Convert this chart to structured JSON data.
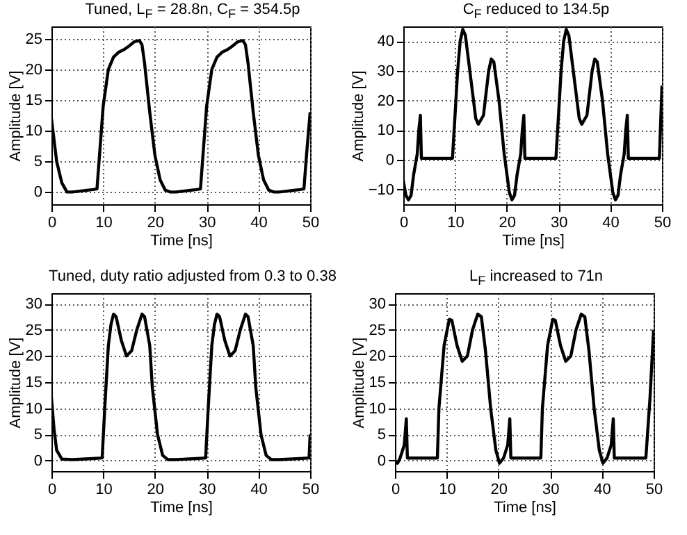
{
  "chart_data": [
    {
      "type": "line",
      "title": "Tuned, L$_{F}$ = 28.8n, C$_{F}$ = 354.5p",
      "xlabel": "Time [ns]",
      "ylabel": "Amplitude [V]",
      "color": "#000000",
      "grid": true,
      "x": [
        0,
        1,
        2,
        3,
        4,
        6,
        8,
        8.8,
        9.2,
        10,
        11,
        12,
        13,
        14,
        15,
        16,
        17,
        17.5,
        18,
        19,
        20,
        21,
        22,
        23,
        24,
        26,
        28,
        28.8,
        29.2,
        30,
        31,
        32,
        33,
        34,
        35,
        36,
        37,
        37.5,
        38,
        39,
        40,
        41,
        42,
        43,
        44,
        46,
        48,
        48.8,
        49.3,
        50
      ],
      "values": [
        12,
        5,
        1.5,
        0,
        0,
        0.2,
        0.4,
        0.5,
        5,
        14,
        20,
        22,
        22.8,
        23.2,
        23.8,
        24.5,
        24.7,
        24,
        21,
        13,
        6,
        2,
        0.3,
        0,
        0,
        0.2,
        0.4,
        0.5,
        5,
        14,
        20,
        22,
        22.8,
        23.2,
        23.8,
        24.5,
        24.7,
        24,
        21,
        13,
        6,
        2,
        0.3,
        0,
        0,
        0.2,
        0.4,
        0.5,
        6,
        13
      ],
      "xlim": [
        0,
        50
      ],
      "xticks": [
        0,
        10,
        20,
        30,
        40,
        50
      ],
      "ylim": [
        -2,
        27
      ],
      "yticks": [
        0,
        5,
        10,
        15,
        20,
        25
      ]
    },
    {
      "type": "line",
      "title": "C$_{F}$ reduced to 134.5p",
      "xlabel": "Time [ns]",
      "ylabel": "Amplitude [V]",
      "color": "#000000",
      "grid": true,
      "x": [
        0,
        0.5,
        1,
        1.5,
        2,
        2.7,
        3,
        3.3,
        3.5,
        5,
        9.5,
        10,
        10.5,
        11,
        11.5,
        12,
        13,
        14,
        14.5,
        15.5,
        16.5,
        17,
        17.5,
        18.5,
        19.5,
        20.5,
        21,
        21.5,
        22,
        22.7,
        23,
        23.3,
        23.5,
        25,
        29.5,
        30,
        30.5,
        31,
        31.5,
        32,
        33,
        34,
        34.5,
        35.5,
        36.5,
        37,
        37.5,
        38.5,
        39.5,
        40.5,
        41,
        41.5,
        42,
        42.7,
        43,
        43.3,
        43.5,
        45,
        49.5,
        50
      ],
      "values": [
        -7,
        -12,
        -13.5,
        -12,
        -5,
        2,
        10,
        15,
        0.5,
        0.5,
        0.5,
        15,
        30,
        40,
        44,
        42,
        28,
        14,
        12,
        15,
        30,
        34,
        33,
        20,
        2,
        -11,
        -13.5,
        -12,
        -5,
        2,
        10,
        15,
        0.5,
        0.5,
        0.5,
        15,
        30,
        40,
        44,
        42,
        28,
        14,
        12,
        15,
        30,
        34,
        33,
        20,
        2,
        -11,
        -13.5,
        -12,
        -5,
        2,
        10,
        15,
        0.5,
        0.5,
        0.5,
        25
      ],
      "xlim": [
        0,
        50
      ],
      "xticks": [
        0,
        10,
        20,
        30,
        40,
        50
      ],
      "ylim": [
        -15,
        45
      ],
      "yticks": [
        -10,
        0,
        10,
        20,
        30,
        40
      ]
    },
    {
      "type": "line",
      "title": "Tuned, duty ratio adjusted from 0.3 to 0.38",
      "xlabel": "Time [ns]",
      "ylabel": "Amplitude [V]",
      "color": "#000000",
      "grid": true,
      "x": [
        0,
        0.5,
        1,
        2,
        4,
        8,
        9.8,
        10.3,
        11,
        11.5,
        12,
        12.5,
        13.5,
        14.5,
        15.5,
        16.5,
        17.5,
        18,
        19,
        19.5,
        20.5,
        21.5,
        22.5,
        24,
        28,
        29.8,
        30.3,
        31,
        31.5,
        32,
        32.5,
        33.5,
        34.5,
        35.5,
        36.5,
        37.5,
        38,
        39,
        39.5,
        40.5,
        41.5,
        42.5,
        44,
        48,
        49.8,
        50
      ],
      "values": [
        12,
        6,
        2,
        0.3,
        0.2,
        0.4,
        0.5,
        10,
        22,
        26,
        28,
        27.5,
        23,
        20,
        21,
        25,
        28,
        27.5,
        22,
        14,
        5,
        1,
        0.2,
        0.2,
        0.4,
        0.5,
        10,
        22,
        26,
        28,
        27.5,
        23,
        20,
        21,
        25,
        28,
        27.5,
        22,
        14,
        5,
        1,
        0.2,
        0.2,
        0.4,
        0.5,
        5
      ],
      "xlim": [
        0,
        50
      ],
      "xticks": [
        0,
        10,
        20,
        30,
        40,
        50
      ],
      "ylim": [
        -2,
        32
      ],
      "yticks": [
        0,
        5,
        10,
        15,
        20,
        25,
        30
      ]
    },
    {
      "type": "line",
      "title": "L$_{F}$ increased to 71n",
      "xlabel": "Time [ns]",
      "ylabel": "Amplitude [V]",
      "color": "#000000",
      "grid": true,
      "x": [
        0,
        0.5,
        1,
        1.8,
        2.2,
        2.4,
        5,
        8.2,
        8.5,
        9.5,
        10.5,
        11,
        12,
        13,
        14,
        15,
        16,
        16.7,
        17.5,
        18.5,
        19.5,
        20.2,
        21,
        21.8,
        22.2,
        22.4,
        25,
        28.2,
        28.5,
        29.5,
        30.5,
        31,
        32,
        33,
        34,
        35,
        36,
        36.7,
        37.5,
        38.5,
        39.5,
        40.2,
        41,
        41.8,
        42.2,
        42.4,
        45,
        48.5,
        49.3,
        50
      ],
      "values": [
        0,
        -0.5,
        0.5,
        3,
        8,
        0.5,
        0.5,
        0.5,
        10,
        22,
        27,
        26.8,
        22,
        19,
        20,
        25,
        28,
        27.5,
        21,
        10,
        2,
        -0.5,
        0.5,
        3,
        8,
        0.5,
        0.5,
        0.5,
        10,
        22,
        27,
        26.8,
        22,
        19,
        20,
        25,
        28,
        27.5,
        21,
        10,
        2,
        -0.5,
        0.5,
        3,
        8,
        0.5,
        0.5,
        0.5,
        12,
        25
      ],
      "xlim": [
        0,
        50
      ],
      "xticks": [
        0,
        10,
        20,
        30,
        40,
        50
      ],
      "ylim": [
        -2,
        32
      ],
      "yticks": [
        0,
        5,
        10,
        15,
        20,
        25,
        30
      ]
    }
  ]
}
